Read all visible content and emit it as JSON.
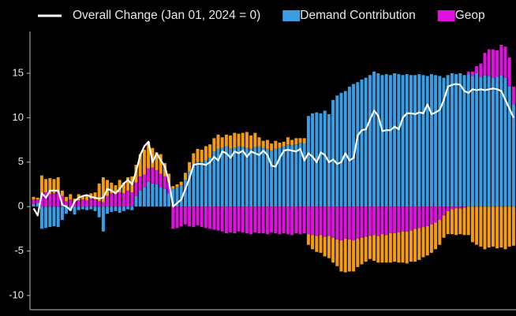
{
  "chart_data": {
    "type": "bar",
    "stacked": true,
    "background": "#000000",
    "categories": [
      null,
      null,
      null,
      null,
      null,
      null,
      null,
      null,
      null,
      null,
      null,
      null,
      null,
      null,
      null,
      null,
      null,
      null,
      null,
      null,
      null,
      null,
      null,
      null,
      null,
      null,
      null,
      null,
      null,
      null,
      null,
      null,
      null,
      null,
      null,
      null,
      null,
      null,
      null,
      null,
      null,
      null,
      null,
      null,
      null,
      null,
      null,
      null,
      null,
      null,
      null,
      null,
      null,
      null,
      null,
      null,
      null,
      null,
      null,
      null,
      null,
      null,
      null,
      null,
      null,
      null,
      null,
      null,
      null,
      null,
      null,
      null,
      null,
      null,
      null,
      null,
      null,
      null,
      null,
      null,
      null,
      null,
      null,
      null,
      null,
      null,
      null,
      null,
      null,
      null,
      null,
      null,
      null,
      null,
      null,
      null,
      null,
      null,
      null,
      null,
      null,
      null,
      null,
      null,
      null,
      null,
      null,
      null,
      null,
      null,
      null,
      null,
      null,
      null,
      null,
      null,
      null,
      null
    ],
    "ylim": [
      -11.6,
      19.7
    ],
    "yticks": [
      -10,
      -5,
      0,
      5,
      10,
      15
    ],
    "series": [
      {
        "name": "Overall Change (Jan 01, 2024 = 0)",
        "type": "line",
        "color": "#ffffff",
        "values": [
          -0.2,
          -1.0,
          1.5,
          1.0,
          1.8,
          1.8,
          1.8,
          0.2,
          0.0,
          -0.4,
          0.6,
          1.0,
          1.2,
          1.3,
          1.1,
          1.0,
          0.9,
          1.0,
          2.0,
          1.8,
          1.5,
          2.0,
          2.6,
          3.0,
          2.5,
          4.0,
          5.8,
          6.8,
          7.3,
          5.0,
          6.0,
          5.2,
          4.5,
          2.8,
          0.0,
          0.4,
          0.8,
          2.0,
          3.2,
          4.7,
          4.8,
          4.8,
          4.7,
          5.0,
          5.6,
          5.2,
          6.2,
          6.0,
          5.5,
          6.2,
          6.0,
          6.3,
          5.6,
          6.2,
          6.0,
          5.8,
          6.3,
          5.8,
          4.6,
          4.5,
          5.5,
          6.3,
          6.4,
          6.3,
          6.2,
          6.5,
          5.2,
          6.0,
          5.6,
          5.0,
          6.1,
          5.8,
          5.0,
          5.3,
          4.8,
          5.0,
          6.0,
          5.2,
          5.5,
          8.0,
          8.6,
          8.7,
          9.8,
          10.8,
          10.2,
          8.5,
          8.6,
          8.6,
          9.0,
          8.7,
          10.0,
          10.5,
          10.5,
          10.4,
          10.6,
          10.5,
          11.5,
          10.4,
          10.6,
          10.9,
          12.0,
          13.5,
          13.7,
          13.8,
          13.7,
          13.0,
          12.8,
          13.2,
          13.1,
          13.2,
          13.1,
          13.2,
          13.3,
          13.2,
          13.0,
          12.0,
          11.0,
          10.0
        ]
      },
      {
        "name": "Demand Contribution",
        "color": "#3a9ee4",
        "values": [
          0.3,
          0.4,
          -2.5,
          -2.4,
          -2.3,
          -2.2,
          -2.3,
          -1.5,
          -0.8,
          -0.5,
          -0.9,
          -0.4,
          -0.3,
          -0.4,
          -0.3,
          -0.5,
          -1.2,
          -2.8,
          -0.8,
          -0.6,
          -0.5,
          -0.7,
          -0.5,
          -0.3,
          -0.4,
          1.2,
          1.8,
          2.2,
          2.8,
          2.6,
          2.5,
          2.2,
          2.0,
          1.5,
          2.0,
          2.2,
          2.4,
          3.0,
          4.0,
          4.8,
          5.0,
          5.0,
          5.2,
          5.5,
          6.2,
          6.5,
          6.6,
          6.8,
          6.5,
          6.6,
          6.8,
          6.7,
          6.6,
          6.5,
          6.7,
          6.8,
          6.6,
          6.5,
          6.3,
          6.5,
          6.6,
          6.8,
          7.0,
          6.9,
          7.0,
          7.2,
          7.1,
          10.2,
          10.5,
          10.6,
          10.5,
          10.8,
          10.4,
          12.0,
          12.5,
          12.8,
          13.0,
          13.5,
          13.8,
          14.0,
          14.3,
          14.5,
          14.8,
          15.2,
          15.0,
          14.8,
          14.9,
          14.8,
          15.0,
          14.9,
          14.8,
          14.9,
          14.8,
          14.8,
          14.9,
          14.8,
          14.7,
          14.9,
          14.8,
          14.7,
          14.5,
          14.8,
          15.0,
          14.9,
          15.0,
          14.8,
          14.9,
          14.7,
          15.0,
          14.6,
          14.8,
          14.7,
          14.5,
          14.6,
          14.8,
          14.5,
          13.5,
          11.5
        ]
      },
      {
        "name": "Geop",
        "color": "#e010e0",
        "values": [
          0.5,
          0.4,
          1.5,
          1.6,
          1.4,
          1.5,
          1.6,
          1.2,
          0.6,
          0.8,
          0.5,
          0.7,
          0.8,
          0.7,
          0.9,
          0.8,
          0.6,
          0.5,
          1.2,
          1.5,
          1.4,
          1.6,
          1.5,
          1.8,
          1.6,
          1.5,
          1.6,
          1.4,
          1.5,
          1.8,
          1.6,
          1.5,
          1.4,
          1.2,
          -2.5,
          -2.4,
          -2.2,
          -2.0,
          -2.2,
          -2.3,
          -2.1,
          -2.3,
          -2.4,
          -2.5,
          -2.6,
          -2.7,
          -2.8,
          -3.0,
          -2.9,
          -3.0,
          -2.8,
          -2.9,
          -3.0,
          -3.1,
          -2.9,
          -3.0,
          -3.0,
          -3.1,
          -2.9,
          -3.0,
          -3.1,
          -3.0,
          -3.1,
          -3.2,
          -3.0,
          -3.1,
          -3.0,
          -3.1,
          -3.2,
          -3.3,
          -3.2,
          -3.4,
          -3.3,
          -3.5,
          -3.7,
          -3.8,
          -3.6,
          -3.7,
          -3.8,
          -3.6,
          -3.5,
          -3.4,
          -3.3,
          -3.2,
          -3.3,
          -3.1,
          -3.2,
          -3.0,
          -3.0,
          -2.9,
          -2.8,
          -2.8,
          -2.7,
          -2.5,
          -2.4,
          -2.3,
          -2.2,
          -2.0,
          -1.8,
          -1.5,
          -1.0,
          -0.5,
          -0.3,
          -0.2,
          -0.2,
          -0.1,
          0.3,
          0.5,
          0.8,
          1.5,
          2.5,
          3.0,
          3.2,
          3.0,
          3.4,
          3.5,
          3.3,
          2.0
        ]
      },
      {
        "color": "#f39c12",
        "values": [
          0.3,
          0.2,
          2.0,
          1.5,
          1.8,
          1.6,
          1.7,
          0.6,
          0.5,
          0.6,
          0.4,
          0.7,
          0.4,
          0.5,
          0.6,
          0.8,
          2.0,
          2.8,
          1.8,
          1.2,
          1.0,
          1.4,
          1.2,
          1.5,
          1.8,
          2.0,
          2.5,
          2.8,
          3.0,
          2.2,
          2.0,
          2.2,
          1.5,
          1.0,
          0.3,
          0.3,
          0.4,
          0.8,
          1.0,
          1.2,
          1.5,
          1.4,
          1.6,
          1.5,
          1.5,
          1.6,
          1.2,
          1.3,
          1.5,
          1.7,
          1.4,
          1.6,
          1.8,
          1.5,
          1.6,
          1.0,
          0.8,
          1.0,
          0.8,
          0.9,
          0.6,
          0.5,
          0.8,
          0.6,
          0.7,
          0.5,
          0.6,
          -1.2,
          -1.6,
          -1.8,
          -2.0,
          -2.2,
          -2.5,
          -2.8,
          -3.0,
          -3.5,
          -3.8,
          -3.6,
          -3.5,
          -3.2,
          -3.0,
          -2.8,
          -2.6,
          -2.9,
          -3.0,
          -3.2,
          -3.1,
          -3.3,
          -3.2,
          -3.4,
          -3.5,
          -3.6,
          -3.5,
          -3.7,
          -3.6,
          -3.4,
          -3.3,
          -3.2,
          -3.0,
          -2.8,
          -2.5,
          -2.6,
          -2.8,
          -3.0,
          -2.9,
          -3.1,
          -3.2,
          -4.0,
          -4.3,
          -4.5,
          -4.8,
          -4.6,
          -4.5,
          -4.7,
          -4.6,
          -4.8,
          -4.5,
          -4.4
        ]
      }
    ]
  }
}
